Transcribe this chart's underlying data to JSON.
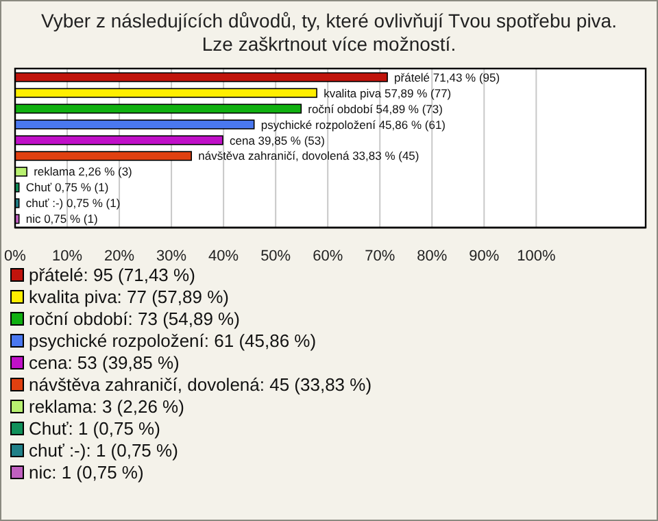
{
  "chart_data": {
    "type": "bar",
    "orientation": "horizontal",
    "stacked": true,
    "title": "Vyber z následujících důvodů, ty, které ovlivňují Tvou spotřebu piva. Lze zaškrtnout více možností.",
    "categories": [
      null,
      null,
      null,
      null,
      null,
      null,
      null,
      null,
      null,
      null
    ],
    "series": [
      {
        "name": "přátelé: 95 (71,43 %)",
        "color": "#c0140c",
        "values": [
          71.43,
          null,
          null,
          null,
          null,
          null,
          null,
          null,
          null,
          null
        ],
        "value_labels": [
          "přátelé 71,43 % (95)",
          null,
          null,
          null,
          null,
          null,
          null,
          null,
          null,
          null
        ]
      },
      {
        "name": "kvalita piva: 77 (57,89 %)",
        "color": "#ffee00",
        "values": [
          null,
          57.89,
          null,
          null,
          null,
          null,
          null,
          null,
          null,
          null
        ],
        "value_labels": [
          null,
          "kvalita piva 57,89 % (77)",
          null,
          null,
          null,
          null,
          null,
          null,
          null,
          null
        ]
      },
      {
        "name": "roční období: 73 (54,89 %)",
        "color": "#10b010",
        "values": [
          null,
          null,
          54.89,
          null,
          null,
          null,
          null,
          null,
          null,
          null
        ],
        "value_labels": [
          null,
          null,
          "roční období 54,89 % (73)",
          null,
          null,
          null,
          null,
          null,
          null,
          null
        ]
      },
      {
        "name": "psychické rozpoložení: 61 (45,86 %)",
        "color": "#4a78f0",
        "values": [
          null,
          null,
          null,
          45.86,
          null,
          null,
          null,
          null,
          null,
          null
        ],
        "value_labels": [
          null,
          null,
          null,
          "psychické rozpoložení 45,86 % (61)",
          null,
          null,
          null,
          null,
          null,
          null
        ]
      },
      {
        "name": "cena: 53 (39,85 %)",
        "color": "#c010c8",
        "values": [
          null,
          null,
          null,
          null,
          39.85,
          null,
          null,
          null,
          null,
          null
        ],
        "value_labels": [
          null,
          null,
          null,
          null,
          "cena 39,85 % (53)",
          null,
          null,
          null,
          null,
          null
        ]
      },
      {
        "name": "návštěva zahraničí, dovolená: 45 (33,83 %)",
        "color": "#e04010",
        "values": [
          null,
          null,
          null,
          null,
          null,
          33.83,
          null,
          null,
          null,
          null
        ],
        "value_labels": [
          null,
          null,
          null,
          null,
          null,
          "návštěva zahraničí, dovolená 33,83 % (45)",
          null,
          null,
          null,
          null
        ]
      },
      {
        "name": "reklama: 3 (2,26 %)",
        "color": "#b8f070",
        "values": [
          null,
          null,
          null,
          null,
          null,
          null,
          2.26,
          null,
          null,
          null
        ],
        "value_labels": [
          null,
          null,
          null,
          null,
          null,
          null,
          "reklama 2,26 % (3)",
          null,
          null,
          null
        ]
      },
      {
        "name": "Chuť: 1 (0,75 %)",
        "color": "#10905a",
        "values": [
          null,
          null,
          null,
          null,
          null,
          null,
          null,
          0.75,
          null,
          null
        ],
        "value_labels": [
          null,
          null,
          null,
          null,
          null,
          null,
          null,
          "Chuť 0,75 % (1)",
          null,
          null
        ]
      },
      {
        "name": "chuť :-): 1 (0,75 %)",
        "color": "#208088",
        "values": [
          null,
          null,
          null,
          null,
          null,
          null,
          null,
          null,
          0.75,
          null
        ],
        "value_labels": [
          null,
          null,
          null,
          null,
          null,
          null,
          null,
          null,
          "chuť :-) 0,75 % (1)",
          null
        ]
      },
      {
        "name": "nic: 1 (0,75 %)",
        "color": "#c060c0",
        "values": [
          null,
          null,
          null,
          null,
          null,
          null,
          null,
          null,
          null,
          0.75
        ],
        "value_labels": [
          null,
          null,
          null,
          null,
          null,
          null,
          null,
          null,
          null,
          "nic 0,75 % (1)"
        ]
      }
    ],
    "xlim": [
      0,
      121
    ],
    "xticks": [
      {
        "value": 0,
        "label": "0%"
      },
      {
        "value": 10,
        "label": "10%"
      },
      {
        "value": 20,
        "label": "20%"
      },
      {
        "value": 30,
        "label": "30%"
      },
      {
        "value": 40,
        "label": "40%"
      },
      {
        "value": 50,
        "label": "50%"
      },
      {
        "value": 60,
        "label": "60%"
      },
      {
        "value": 70,
        "label": "70%"
      },
      {
        "value": 80,
        "label": "80%"
      },
      {
        "value": 90,
        "label": "90%"
      },
      {
        "value": 100,
        "label": "100%"
      }
    ],
    "grid": "x",
    "legend": "bottom",
    "tick_labels": "x"
  }
}
